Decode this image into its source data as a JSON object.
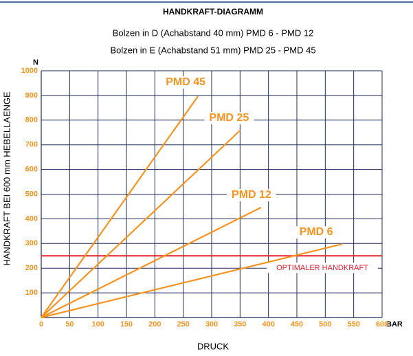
{
  "chart_data": {
    "type": "line",
    "title": "HANDKRAFT-DIAGRAMM",
    "subtitle": [
      "Bolzen in D (Achabstand 40 mm) PMD 6 - PMD 12",
      "Bolzen in E (Achabstand 51 mm) PMD 25 - PMD 45"
    ],
    "x_label": "DRUCK",
    "x_unit": "BAR",
    "y_label": "HANDKRAFT BEI 600 mm HEBELLAENGE",
    "y_unit": "N",
    "xlim": [
      0,
      600
    ],
    "xticks": [
      0,
      50,
      100,
      150,
      200,
      250,
      300,
      350,
      400,
      450,
      500,
      550,
      600
    ],
    "ylim": [
      0,
      1000
    ],
    "yticks": [
      100,
      200,
      300,
      400,
      500,
      600,
      700,
      800,
      900,
      1000
    ],
    "grid": true,
    "series": [
      {
        "name": "PMD 45",
        "color": "#f7931e",
        "x": [
          0,
          276
        ],
        "values": [
          0,
          897
        ]
      },
      {
        "name": "PMD 25",
        "color": "#f7931e",
        "x": [
          0,
          350
        ],
        "values": [
          0,
          758
        ]
      },
      {
        "name": "PMD 12",
        "color": "#f7931e",
        "x": [
          0,
          387
        ],
        "values": [
          0,
          446
        ]
      },
      {
        "name": "PMD 6",
        "color": "#f7931e",
        "x": [
          0,
          530
        ],
        "values": [
          0,
          298
        ]
      }
    ],
    "reference_lines": [
      {
        "value": 250,
        "label": "OPTIMALER HANDKRAFT",
        "color": "#e8202a"
      }
    ]
  }
}
